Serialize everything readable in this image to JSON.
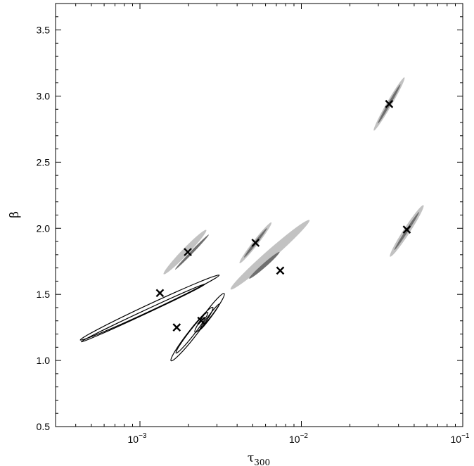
{
  "chart_data": {
    "type": "scatter",
    "x_scale": "log",
    "xlim": [
      0.0003,
      0.1
    ],
    "ylim": [
      0.5,
      3.7
    ],
    "xlabel": "τ",
    "xlabel_sub": "300",
    "ylabel": "β",
    "grid": false,
    "x_ticks": [
      {
        "value": 0.001,
        "base": "10",
        "exp": "−3"
      },
      {
        "value": 0.01,
        "base": "10",
        "exp": "−2"
      },
      {
        "value": 0.1,
        "base": "10",
        "exp": "−1"
      }
    ],
    "y_ticks": [
      {
        "value": 0.5,
        "label": "0.5"
      },
      {
        "value": 1.0,
        "label": "1.0"
      },
      {
        "value": 1.5,
        "label": "1.5"
      },
      {
        "value": 2.0,
        "label": "2.0"
      },
      {
        "value": 2.5,
        "label": "2.5"
      },
      {
        "value": 3.0,
        "label": "3.0"
      },
      {
        "value": 3.5,
        "label": "3.5"
      }
    ],
    "shaded_contours": [
      {
        "outer": {
          "x": 0.0064,
          "y": 1.8,
          "w": 0.65,
          "h": 0.07,
          "angle_deg": 41.3
        },
        "inner": {
          "x": 0.0059,
          "y": 1.72,
          "w": 0.25,
          "h": 0.03,
          "angle_deg": 41.3
        }
      },
      {
        "outer": {
          "x": 0.0019,
          "y": 1.82,
          "w": 0.38,
          "h": 0.05,
          "angle_deg": 46
        },
        "inner": {
          "x": 0.0021,
          "y": 1.82,
          "w": 0.3,
          "h": 0.02,
          "angle_deg": 46
        }
      },
      {
        "outer": {
          "x": 0.0052,
          "y": 1.89,
          "w": 0.32,
          "h": 0.04,
          "angle_deg": 52
        },
        "inner": {
          "x": 0.0052,
          "y": 1.89,
          "w": 0.23,
          "h": 0.02,
          "angle_deg": 52
        }
      },
      {
        "outer": {
          "x": 0.035,
          "y": 2.94,
          "w": 0.38,
          "h": 0.04,
          "angle_deg": 60
        },
        "inner": {
          "x": 0.035,
          "y": 2.94,
          "w": 0.28,
          "h": 0.02,
          "angle_deg": 60
        }
      },
      {
        "outer": {
          "x": 0.045,
          "y": 1.98,
          "w": 0.38,
          "h": 0.05,
          "angle_deg": 57
        },
        "inner": {
          "x": 0.045,
          "y": 1.98,
          "w": 0.28,
          "h": 0.02,
          "angle_deg": 57
        }
      }
    ],
    "line_contours": [
      {
        "x": 0.00115,
        "y": 1.4,
        "w": 0.95,
        "h": 0.05,
        "angle_deg": 25
      },
      {
        "x": 0.00105,
        "y": 1.36,
        "w": 0.85,
        "h": 0.027,
        "angle_deg": 25
      },
      {
        "x": 0.0021,
        "y": 1.2,
        "w": 0.42,
        "h": 0.06,
        "angle_deg": 52
      },
      {
        "x": 0.0021,
        "y": 1.21,
        "w": 0.32,
        "h": 0.04,
        "angle_deg": 52
      },
      {
        "x": 0.0027,
        "y": 1.36,
        "w": 0.3,
        "h": 0.05,
        "angle_deg": 53
      },
      {
        "x": 0.0027,
        "y": 1.33,
        "w": 0.2,
        "h": 0.02,
        "angle_deg": 53
      }
    ],
    "markers": [
      {
        "x": 0.00133,
        "y": 1.51
      },
      {
        "x": 0.00198,
        "y": 1.82
      },
      {
        "x": 0.00169,
        "y": 1.25
      },
      {
        "x": 0.0024,
        "y": 1.3
      },
      {
        "x": 0.0052,
        "y": 1.89
      },
      {
        "x": 0.0074,
        "y": 1.68
      },
      {
        "x": 0.035,
        "y": 2.94
      },
      {
        "x": 0.045,
        "y": 1.99
      }
    ],
    "colors": {
      "outer_fill": "#c2c2c2",
      "inner_fill": "#6f6f6f",
      "line": "#000000",
      "marker": "#000000"
    }
  }
}
